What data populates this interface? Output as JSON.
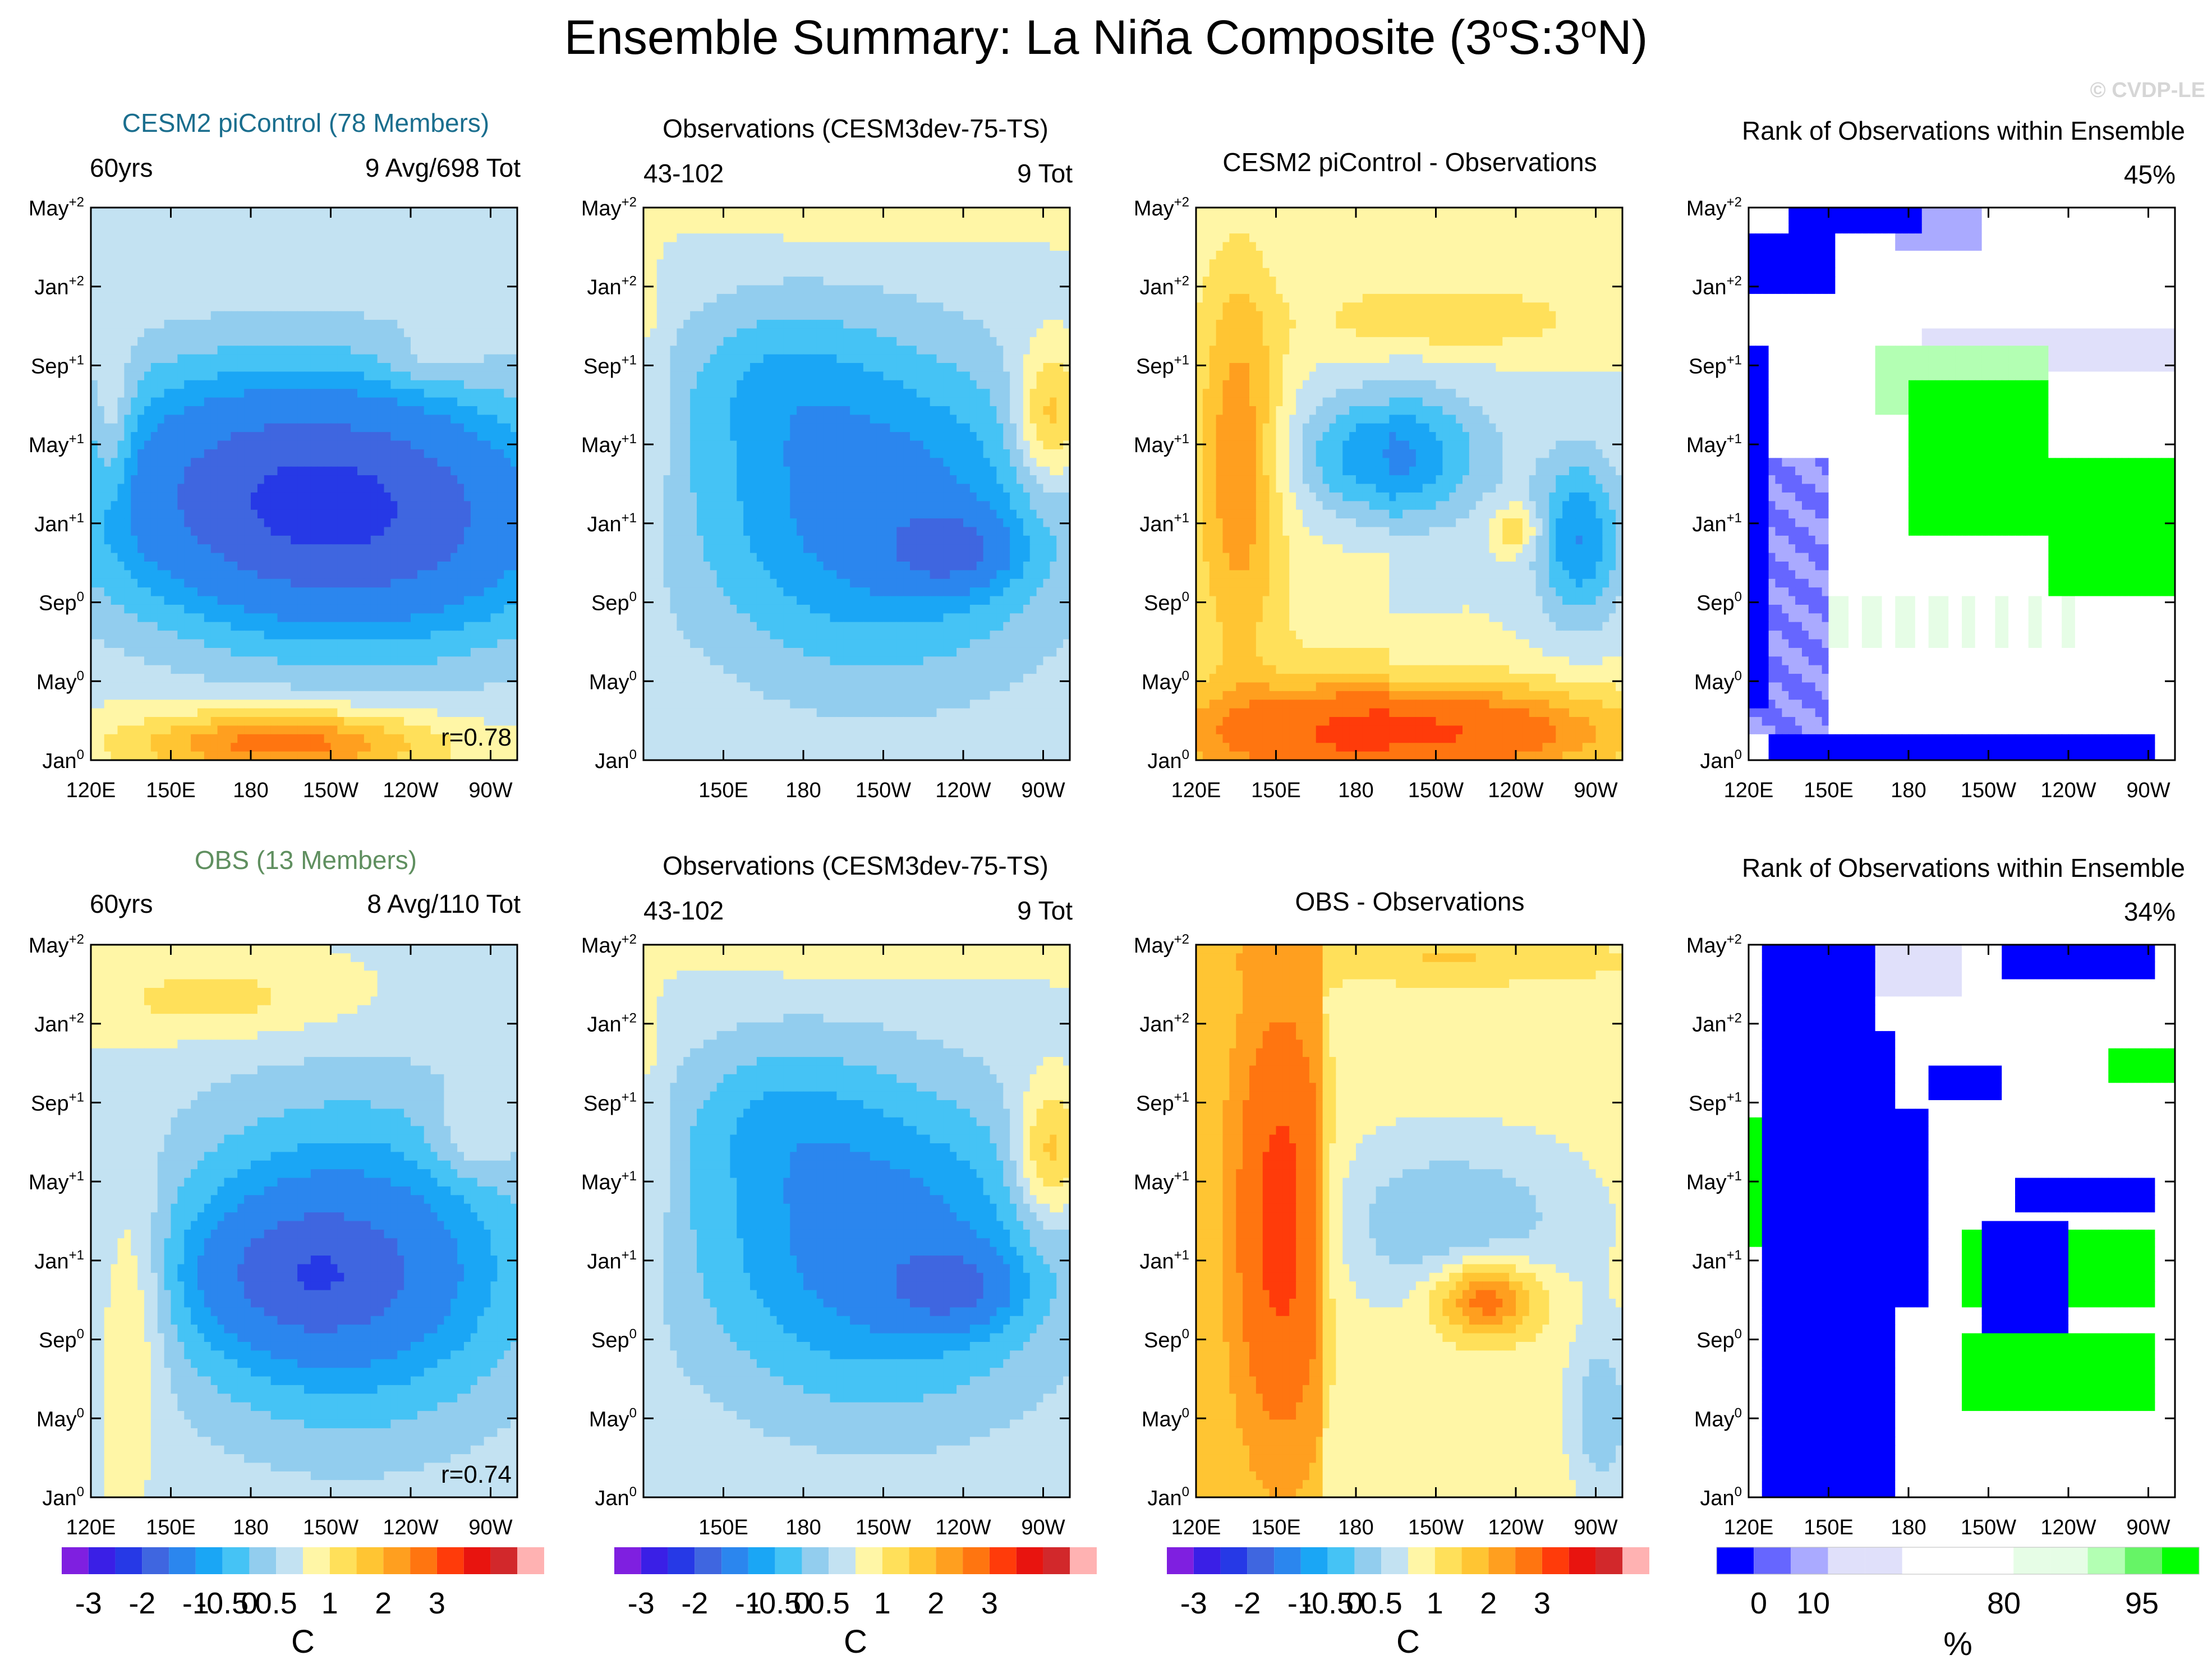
{
  "title": "Ensemble Summary: La Niña Composite (3°S:3°N)",
  "title_parts": {
    "pre": "Ensemble Summary: La Niña Composite (3",
    "o1": "o",
    "mid": "S:3",
    "o2": "o",
    "post": "N)"
  },
  "copyright": "© CVDP-LE",
  "headers": {
    "r1c1_title": "CESM2 piControl (78 Members)",
    "r1c1_left": "60yrs",
    "r1c1_right": "9 Avg/698 Tot",
    "r1c2_title": "Observations (CESM3dev-75-TS)",
    "r1c2_left": "43-102",
    "r1c2_right": "9 Tot",
    "r1c3_title": "CESM2 piControl - Observations",
    "r1c4_title": "Rank of Observations within Ensemble",
    "r1c4_right": "45%",
    "r2c1_title": "OBS (13 Members)",
    "r2c1_left": "60yrs",
    "r2c1_right": "8 Avg/110 Tot",
    "r2c2_title": "Observations (CESM3dev-75-TS)",
    "r2c2_left": "43-102",
    "r2c2_right": "9 Tot",
    "r2c3_title": "OBS - Observations",
    "r2c4_title": "Rank of Observations within Ensemble",
    "r2c4_right": "34%"
  },
  "colors": {
    "title_cesm": "#1a6e8e",
    "title_obs": "#5f8f5f"
  },
  "chart_data": [
    {
      "id": "r1c1",
      "type": "heatmap",
      "pattern": "cesm",
      "corr": "r=0.78",
      "x_ticks": [
        "120E",
        "150E",
        "180",
        "150W",
        "120W",
        "90W"
      ],
      "y_ticks": [
        {
          "b": "May",
          "s": "+2"
        },
        {
          "b": "Jan",
          "s": "+2"
        },
        {
          "b": "Sep",
          "s": "+1"
        },
        {
          "b": "May",
          "s": "+1"
        },
        {
          "b": "Jan",
          "s": "+1"
        },
        {
          "b": "Sep",
          "s": "0"
        },
        {
          "b": "May",
          "s": "0"
        },
        {
          "b": "Jan",
          "s": "0"
        }
      ],
      "xlim": [
        120,
        280
      ],
      "ylim": [
        "Jan0",
        "May+2"
      ],
      "units": "C"
    },
    {
      "id": "r1c2",
      "type": "heatmap",
      "pattern": "obs",
      "x_ticks": [
        "150E",
        "180",
        "150W",
        "120W",
        "90W"
      ],
      "y_ticks": [
        {
          "b": "May",
          "s": "+2"
        },
        {
          "b": "Jan",
          "s": "+2"
        },
        {
          "b": "Sep",
          "s": "+1"
        },
        {
          "b": "May",
          "s": "+1"
        },
        {
          "b": "Jan",
          "s": "+1"
        },
        {
          "b": "Sep",
          "s": "0"
        },
        {
          "b": "May",
          "s": "0"
        },
        {
          "b": "Jan",
          "s": "0"
        }
      ],
      "units": "C"
    },
    {
      "id": "r1c3",
      "type": "heatmap",
      "pattern": "diff1",
      "x_ticks": [
        "120E",
        "150E",
        "180",
        "150W",
        "120W",
        "90W"
      ],
      "y_ticks": [
        {
          "b": "May",
          "s": "+2"
        },
        {
          "b": "Jan",
          "s": "+2"
        },
        {
          "b": "Sep",
          "s": "+1"
        },
        {
          "b": "May",
          "s": "+1"
        },
        {
          "b": "Jan",
          "s": "+1"
        },
        {
          "b": "Sep",
          "s": "0"
        },
        {
          "b": "May",
          "s": "0"
        },
        {
          "b": "Jan",
          "s": "0"
        }
      ],
      "units": "C"
    },
    {
      "id": "r1c4",
      "type": "heatmap",
      "pattern": "rank1",
      "x_ticks": [
        "120E",
        "150E",
        "180",
        "150W",
        "120W",
        "90W"
      ],
      "y_ticks": [
        {
          "b": "May",
          "s": "+2"
        },
        {
          "b": "Jan",
          "s": "+2"
        },
        {
          "b": "Sep",
          "s": "+1"
        },
        {
          "b": "May",
          "s": "+1"
        },
        {
          "b": "Jan",
          "s": "+1"
        },
        {
          "b": "Sep",
          "s": "0"
        },
        {
          "b": "May",
          "s": "0"
        },
        {
          "b": "Jan",
          "s": "0"
        }
      ],
      "units": "%"
    },
    {
      "id": "r2c1",
      "type": "heatmap",
      "pattern": "obsens",
      "corr": "r=0.74",
      "x_ticks": [
        "120E",
        "150E",
        "180",
        "150W",
        "120W",
        "90W"
      ],
      "y_ticks": [
        {
          "b": "May",
          "s": "+2"
        },
        {
          "b": "Jan",
          "s": "+2"
        },
        {
          "b": "Sep",
          "s": "+1"
        },
        {
          "b": "May",
          "s": "+1"
        },
        {
          "b": "Jan",
          "s": "+1"
        },
        {
          "b": "Sep",
          "s": "0"
        },
        {
          "b": "May",
          "s": "0"
        },
        {
          "b": "Jan",
          "s": "0"
        }
      ],
      "units": "C"
    },
    {
      "id": "r2c2",
      "type": "heatmap",
      "pattern": "obs",
      "x_ticks": [
        "150E",
        "180",
        "150W",
        "120W",
        "90W"
      ],
      "y_ticks": [
        {
          "b": "May",
          "s": "+2"
        },
        {
          "b": "Jan",
          "s": "+2"
        },
        {
          "b": "Sep",
          "s": "+1"
        },
        {
          "b": "May",
          "s": "+1"
        },
        {
          "b": "Jan",
          "s": "+1"
        },
        {
          "b": "Sep",
          "s": "0"
        },
        {
          "b": "May",
          "s": "0"
        },
        {
          "b": "Jan",
          "s": "0"
        }
      ],
      "units": "C"
    },
    {
      "id": "r2c3",
      "type": "heatmap",
      "pattern": "diff2",
      "x_ticks": [
        "120E",
        "150E",
        "180",
        "150W",
        "120W",
        "90W"
      ],
      "y_ticks": [
        {
          "b": "May",
          "s": "+2"
        },
        {
          "b": "Jan",
          "s": "+2"
        },
        {
          "b": "Sep",
          "s": "+1"
        },
        {
          "b": "May",
          "s": "+1"
        },
        {
          "b": "Jan",
          "s": "+1"
        },
        {
          "b": "Sep",
          "s": "0"
        },
        {
          "b": "May",
          "s": "0"
        },
        {
          "b": "Jan",
          "s": "0"
        }
      ],
      "units": "C"
    },
    {
      "id": "r2c4",
      "type": "heatmap",
      "pattern": "rank2",
      "x_ticks": [
        "120E",
        "150E",
        "180",
        "150W",
        "120W",
        "90W"
      ],
      "y_ticks": [
        {
          "b": "May",
          "s": "+2"
        },
        {
          "b": "Jan",
          "s": "+2"
        },
        {
          "b": "Sep",
          "s": "+1"
        },
        {
          "b": "May",
          "s": "+1"
        },
        {
          "b": "Jan",
          "s": "+1"
        },
        {
          "b": "Sep",
          "s": "0"
        },
        {
          "b": "May",
          "s": "0"
        },
        {
          "b": "Jan",
          "s": "0"
        }
      ],
      "units": "%"
    }
  ],
  "colorbars": {
    "temp": {
      "colors": [
        "#7f1fe0",
        "#3a1fe6",
        "#2639e6",
        "#3f66e0",
        "#2b86ee",
        "#1aa6f5",
        "#45c3f5",
        "#92cdee",
        "#c3e2f2",
        "#fff6a6",
        "#ffe05a",
        "#ffc533",
        "#ff9f1f",
        "#ff7510",
        "#ff3b0a",
        "#e8140f",
        "#d2282b",
        "#ffb2b2"
      ],
      "labels": [
        "-3",
        "-2",
        "-1",
        "-0.5",
        "0",
        "0.5",
        "1",
        "2",
        "3"
      ],
      "unit": "C"
    },
    "rank": {
      "colors": [
        "#0000ff",
        "#6666ff",
        "#aaaaff",
        "#e0e0fa",
        "#e0e0fa",
        "#ffffff",
        "#ffffff",
        "#ffffff",
        "#e6fde6",
        "#e6fde6",
        "#b3ffb3",
        "#66f466",
        "#00ff00"
      ],
      "labels": [
        "0",
        "10",
        "80",
        "95"
      ],
      "unit": "%"
    }
  }
}
